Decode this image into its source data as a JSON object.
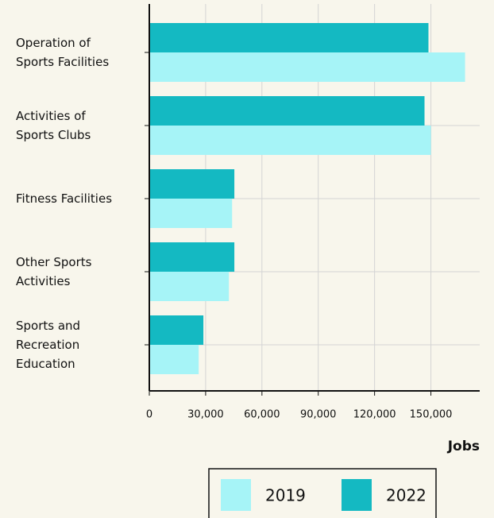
{
  "chart_data": {
    "type": "barh",
    "x_label": "Jobs",
    "categories": [
      "Operation of\nSports Facilities",
      "Activities of\nSports Clubs",
      "Fitness Facilities",
      "Other Sports\nActivities",
      "Sports and\nRecreation\nEducation"
    ],
    "series": [
      {
        "name": "2022",
        "color": "#14b9c2",
        "values": [
          148700,
          146600,
          45300,
          45300,
          28800
        ]
      },
      {
        "name": "2019",
        "color": "#a6f4f7",
        "values": [
          168200,
          150000,
          44100,
          42400,
          26300
        ]
      }
    ],
    "legend_order": [
      "2019",
      "2022"
    ],
    "xlim": [
      0,
      176000
    ],
    "xticks": [
      0,
      {
        "value": 30000,
        "label": "30,000"
      },
      {
        "value": 60000,
        "label": "60,000"
      },
      {
        "value": 90000,
        "label": "90,000"
      },
      {
        "value": 120000,
        "label": "120,000"
      },
      {
        "value": 150000,
        "label": "150,000"
      }
    ],
    "grid": true,
    "legend": "bottom"
  }
}
